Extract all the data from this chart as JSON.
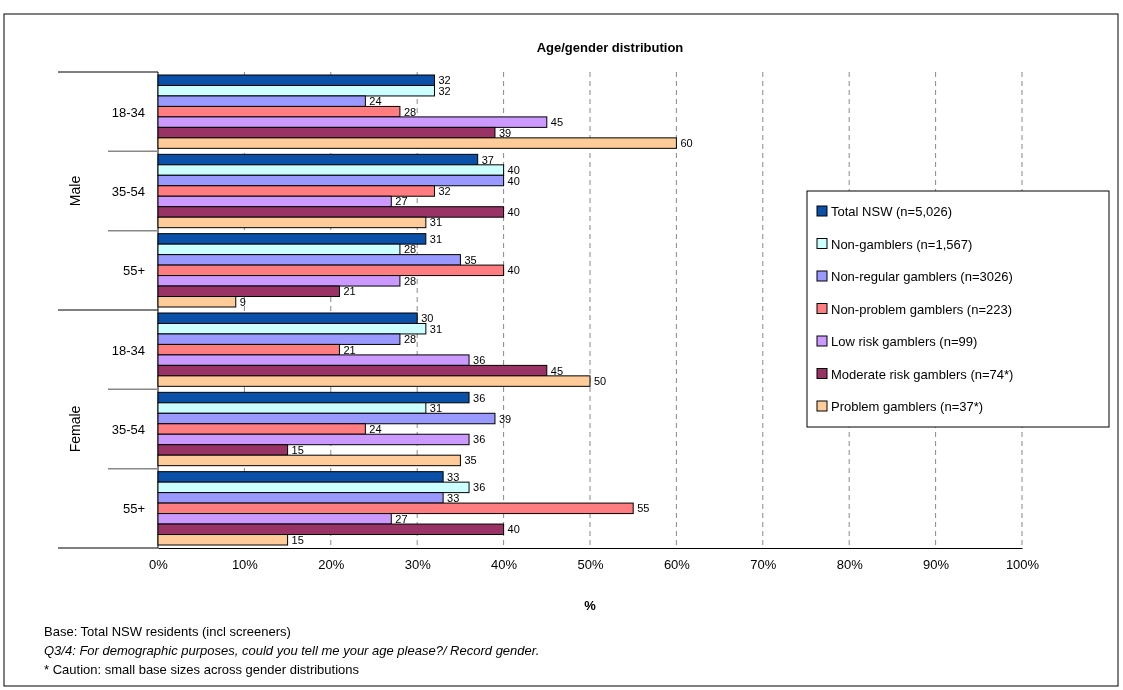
{
  "chart_data": {
    "type": "bar",
    "orientation": "horizontal",
    "title": "Age/gender distribution",
    "xlabel": "%",
    "categories": [
      "18-34",
      "35-54",
      "55+",
      "18-34",
      "35-54",
      "55+"
    ],
    "series": [
      {
        "name": "Total NSW (n=5,026)",
        "color": "#0a4fa8",
        "values": [
          32,
          37,
          31,
          30,
          36,
          33
        ]
      },
      {
        "name": "Non-gamblers (n=1,567)",
        "color": "#ccffff",
        "values": [
          32,
          40,
          28,
          31,
          31,
          36
        ]
      },
      {
        "name": "Non-regular gamblers (n=3026)",
        "color": "#9999ff",
        "values": [
          24,
          40,
          35,
          28,
          39,
          33
        ]
      },
      {
        "name": "Non-problem gamblers (n=223)",
        "color": "#ff7c80",
        "values": [
          28,
          32,
          40,
          21,
          24,
          55
        ]
      },
      {
        "name": "Low risk gamblers (n=99)",
        "color": "#cc99ff",
        "values": [
          45,
          27,
          28,
          36,
          36,
          27
        ]
      },
      {
        "name": "Moderate risk gamblers (n=74*)",
        "color": "#993366",
        "values": [
          39,
          40,
          21,
          45,
          15,
          40
        ]
      },
      {
        "name": "Problem gamblers (n=37*)",
        "color": "#ffcc99",
        "values": [
          60,
          31,
          9,
          50,
          35,
          15
        ]
      }
    ],
    "xlim": [
      0,
      100
    ],
    "xticks": [
      {
        "value": 0,
        "label": "0%"
      },
      {
        "value": 10,
        "label": "10%"
      },
      {
        "value": 20,
        "label": "20%"
      },
      {
        "value": 30,
        "label": "30%"
      },
      {
        "value": 40,
        "label": "40%"
      },
      {
        "value": 50,
        "label": "50%"
      },
      {
        "value": 60,
        "label": "60%"
      },
      {
        "value": 70,
        "label": "70%"
      },
      {
        "value": 80,
        "label": "80%"
      },
      {
        "value": 90,
        "label": "90%"
      },
      {
        "value": 100,
        "label": "100%"
      }
    ],
    "grid": "x",
    "legend": "right",
    "data_labels": true,
    "annotations": [
      "Male",
      "Female",
      "Base: Total NSW residents (incl screeners)",
      "Q3/4: For demographic purposes, could you tell me your age please?/ Record gender.",
      "* Caution: small base sizes across gender distributions"
    ]
  }
}
